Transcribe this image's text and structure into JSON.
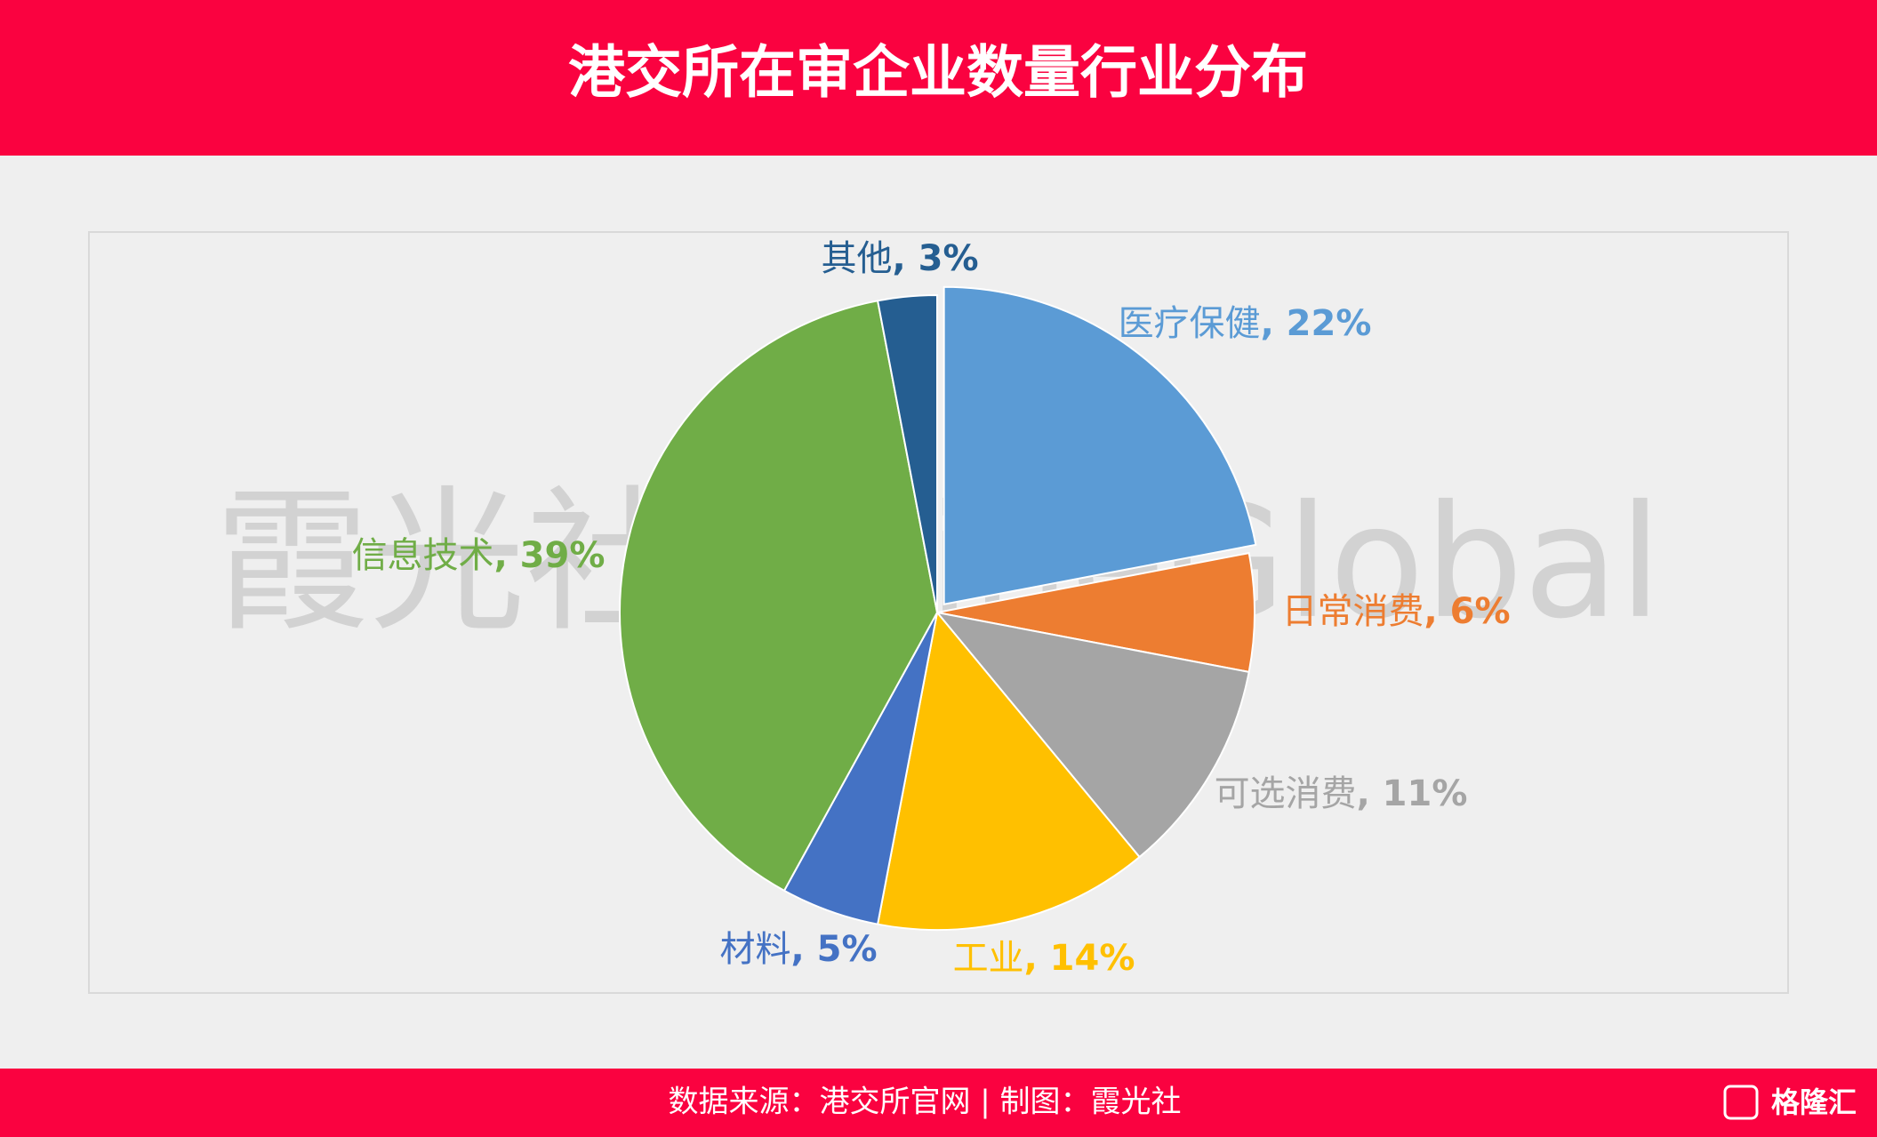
{
  "title": "港交所在审企业数量行业分布",
  "watermark": "霞光社 ShineGlobal",
  "footer": "数据来源：港交所官网 | 制图：霞光社",
  "logo": "格隆汇",
  "chart_data": {
    "type": "pie",
    "categories": [
      "医疗保健",
      "日常消费",
      "可选消费",
      "工业",
      "材料",
      "信息技术",
      "其他"
    ],
    "values": [
      22,
      6,
      11,
      14,
      5,
      39,
      3
    ],
    "value_labels": [
      ", 22%",
      ", 6%",
      ", 11%",
      ", 14%",
      ", 5%",
      ", 39%",
      ", 3%"
    ],
    "colors": [
      "#5b9bd5",
      "#ed7d31",
      "#a5a5a5",
      "#ffc000",
      "#4472c4",
      "#70ad47",
      "#255e91"
    ],
    "exploded": [
      0
    ]
  }
}
